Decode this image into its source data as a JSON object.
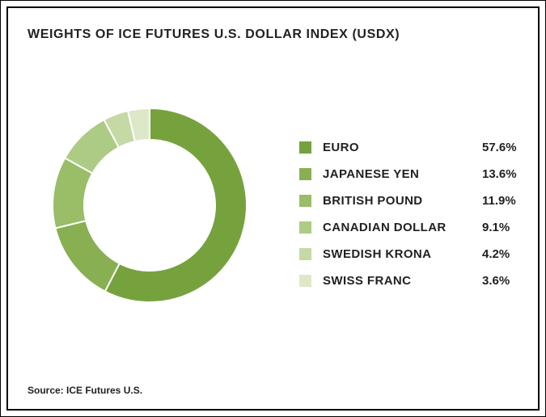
{
  "frame": {
    "title": "WEIGHTS OF ICE FUTURES U.S. DOLLAR INDEX (USDX)",
    "source": "Source: ICE Futures U.S."
  },
  "chart_data": {
    "type": "pie",
    "subtype": "donut",
    "title": "WEIGHTS OF ICE FUTURES U.S. DOLLAR INDEX (USDX)",
    "categories": [
      "EURO",
      "JAPANESE YEN",
      "BRITISH POUND",
      "CANADIAN DOLLAR",
      "SWEDISH KRONA",
      "SWISS FRANC"
    ],
    "values": [
      57.6,
      13.6,
      11.9,
      9.1,
      4.2,
      3.6
    ],
    "value_labels": [
      "57.6%",
      "13.6%",
      "11.9%",
      "9.1%",
      "4.2%",
      "3.6%"
    ],
    "colors": [
      "#76a23e",
      "#88af52",
      "#9abd68",
      "#aecb85",
      "#c5d9a5",
      "#dde8c9"
    ],
    "legend_position": "right",
    "start_angle_deg": -90,
    "direction": "clockwise",
    "source": "Source: ICE Futures U.S."
  }
}
